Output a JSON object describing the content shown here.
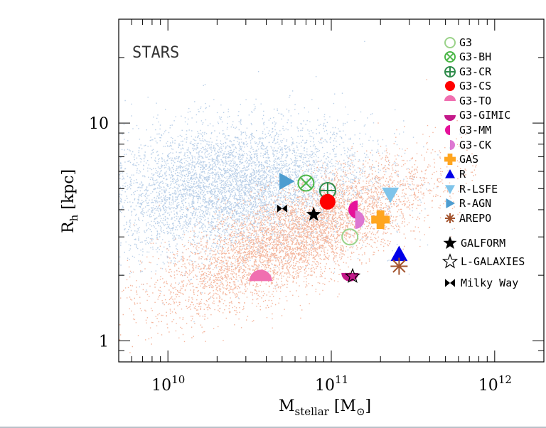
{
  "chart_data": {
    "type": "scatter",
    "panel_label": "STARS",
    "xlabel": {
      "main": "M",
      "sub": "stellar",
      "unit_open": " [M",
      "unit_sub": "⊙",
      "unit_close": "]"
    },
    "ylabel": {
      "main": "R",
      "sub": "h",
      "unit": " [kpc]"
    },
    "x_scale": "log",
    "y_scale": "log",
    "xlim": [
      5000000000.0,
      2000000000000.0
    ],
    "ylim": [
      0.8,
      30
    ],
    "x_ticks": [
      {
        "value": 10000000000.0,
        "base": "10",
        "exp": "10"
      },
      {
        "value": 100000000000.0,
        "base": "10",
        "exp": "11"
      },
      {
        "value": 1000000000000.0,
        "base": "10",
        "exp": "12"
      }
    ],
    "y_ticks": [
      {
        "value": 1,
        "label": "1"
      },
      {
        "value": 10,
        "label": "10"
      }
    ],
    "background_clouds": [
      {
        "population": "blue",
        "color": "#b9cfe8",
        "center_x": 25000000000.0,
        "center_y": 5.0,
        "count": 6000
      },
      {
        "population": "red",
        "color": "#f4b59c",
        "center_x": 60000000000.0,
        "center_y": 3.0,
        "count": 6000
      }
    ],
    "series": [
      {
        "name": "G3",
        "marker": "open-circle",
        "color": "#9bd38a",
        "x": 130000000000.0,
        "y": 3.0
      },
      {
        "name": "G3-BH",
        "marker": "circle-x",
        "color": "#4cb748",
        "x": 70000000000.0,
        "y": 5.3
      },
      {
        "name": "G3-CR",
        "marker": "circle-plus",
        "color": "#2e8b4a",
        "x": 95000000000.0,
        "y": 4.9
      },
      {
        "name": "G3-CS",
        "marker": "filled-circle",
        "color": "#ff0000",
        "x": 95000000000.0,
        "y": 4.35
      },
      {
        "name": "G3-TO",
        "marker": "half-circle-top",
        "color": "#f06fb0",
        "x": 37000000000.0,
        "y": 1.88
      },
      {
        "name": "G3-GIMIC",
        "marker": "half-circle-bottom",
        "color": "#c4198a",
        "x": 130000000000.0,
        "y": 2.05
      },
      {
        "name": "G3-MM",
        "marker": "half-circle-left",
        "color": "#e6129a",
        "x": 145000000000.0,
        "y": 4.0
      },
      {
        "name": "G3-CK",
        "marker": "half-circle-right",
        "color": "#dd77d2",
        "x": 140000000000.0,
        "y": 3.6
      },
      {
        "name": "GAS",
        "marker": "plus",
        "color": "#ffa51f",
        "x": 200000000000.0,
        "y": 3.6
      },
      {
        "name": "R",
        "marker": "triangle-up",
        "color": "#0000e8",
        "x": 260000000000.0,
        "y": 2.5
      },
      {
        "name": "R-LSFE",
        "marker": "triangle-down",
        "color": "#7fc4ea",
        "x": 230000000000.0,
        "y": 4.7
      },
      {
        "name": "R-AGN",
        "marker": "triangle-right",
        "color": "#4e9dd0",
        "x": 53000000000.0,
        "y": 5.4
      },
      {
        "name": "AREPO",
        "marker": "asterisk",
        "color": "#a3532d",
        "x": 260000000000.0,
        "y": 2.2
      },
      {
        "name": "GALFORM",
        "marker": "filled-star",
        "color": "#000000",
        "x": 78000000000.0,
        "y": 3.8
      },
      {
        "name": "L-GALAXIES",
        "marker": "open-star",
        "color": "#000000",
        "x": 135000000000.0,
        "y": 1.98
      },
      {
        "name": "Milky Way",
        "marker": "bowtie",
        "color": "#000000",
        "x": 50000000000.0,
        "y": 4.05
      }
    ],
    "legend_placement": "right",
    "grid": false
  }
}
